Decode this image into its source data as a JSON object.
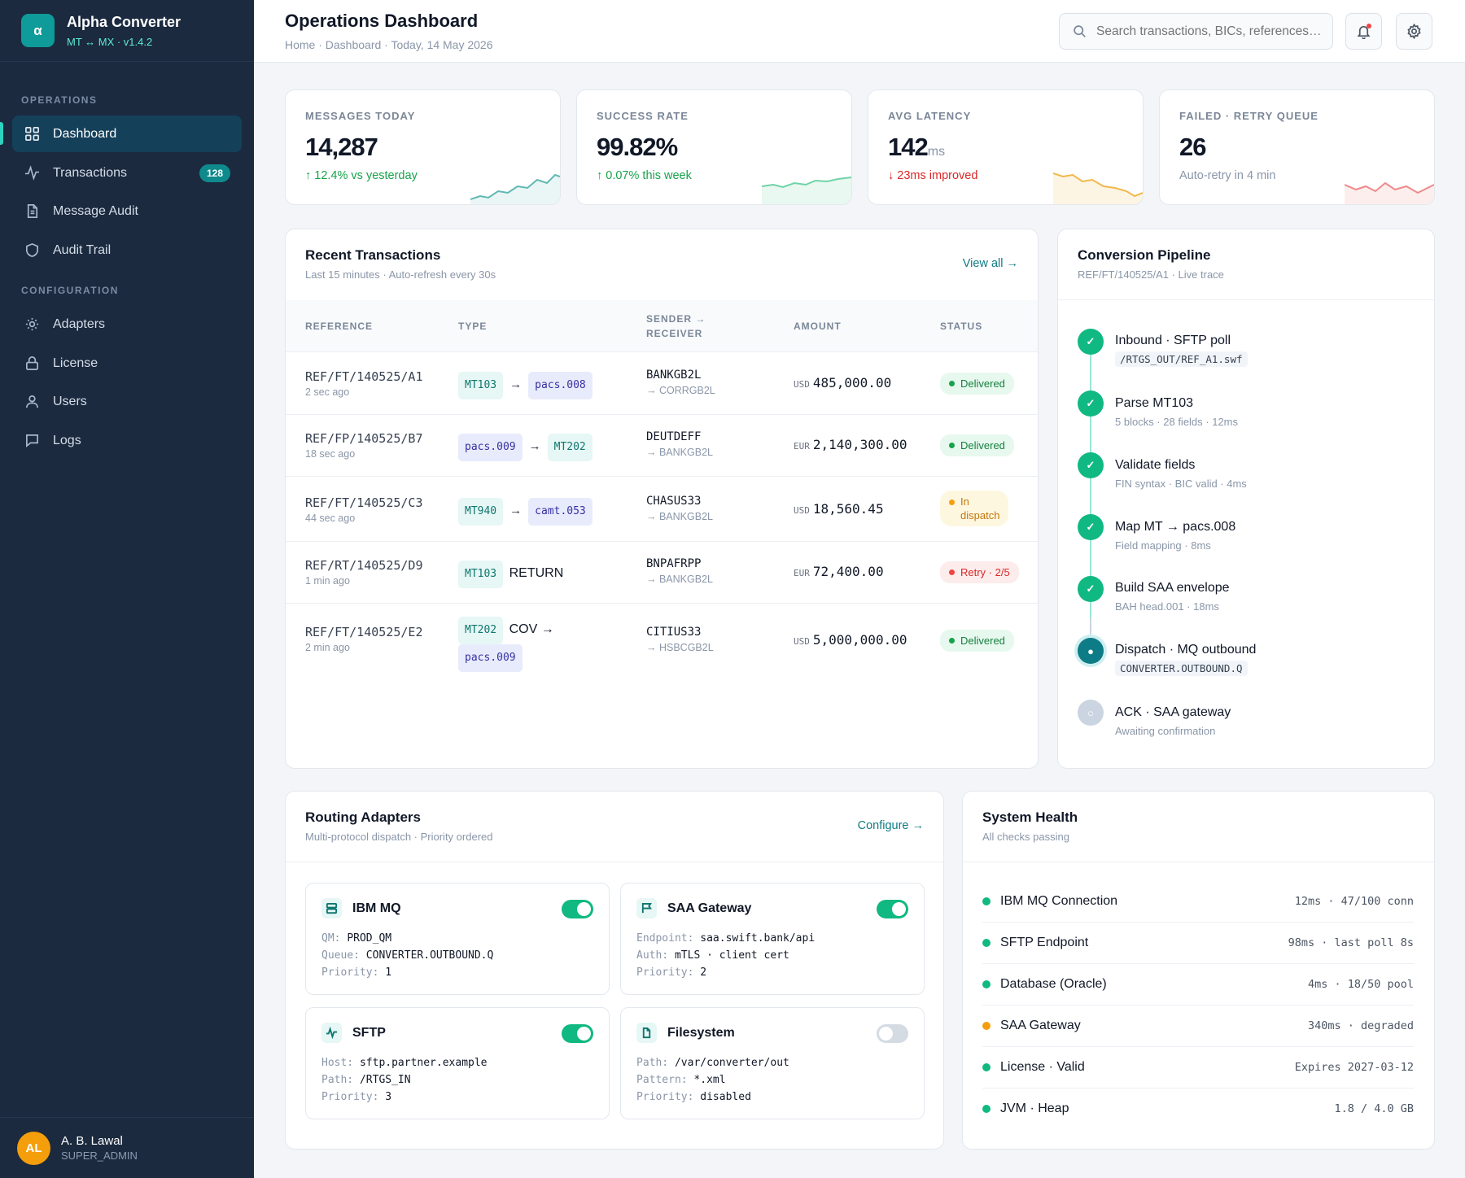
{
  "app": {
    "name": "Alpha Converter",
    "logo_glyph": "α",
    "subtitle": "MT ↔ MX · v1.4.2"
  },
  "sidebar": {
    "sections": [
      {
        "label": "OPERATIONS"
      },
      {
        "label": "CONFIGURATION"
      }
    ],
    "items": [
      {
        "label": "Dashboard",
        "icon": "grid-icon",
        "active": true
      },
      {
        "label": "Transactions",
        "icon": "activity-icon",
        "badge": "128"
      },
      {
        "label": "Message Audit",
        "icon": "file-icon"
      },
      {
        "label": "Audit Trail",
        "icon": "shield-icon"
      },
      {
        "label": "Adapters",
        "icon": "sun-icon"
      },
      {
        "label": "License",
        "icon": "lock-icon"
      },
      {
        "label": "Users",
        "icon": "user-icon"
      },
      {
        "label": "Logs",
        "icon": "chat-icon"
      }
    ],
    "user": {
      "initials": "AL",
      "name": "A. B. Lawal",
      "role": "SUPER_ADMIN"
    }
  },
  "header": {
    "title": "Operations Dashboard",
    "breadcrumb": "Home · Dashboard · Today, 14 May 2026",
    "search_placeholder": "Search transactions, BICs, references…"
  },
  "kpis": [
    {
      "label": "MESSAGES TODAY",
      "value": "14,287",
      "unit": "",
      "delta": "↑ 12.4% vs yesterday",
      "delta_color": "#16a34a",
      "spark_color": "#5fb8b3"
    },
    {
      "label": "SUCCESS RATE",
      "value": "99.82%",
      "unit": "",
      "delta": "↑ 0.07% this week",
      "delta_color": "#16a34a",
      "spark_color": "#6ed3a8"
    },
    {
      "label": "AVG LATENCY",
      "value": "142",
      "unit": "ms",
      "delta": "↓ 23ms improved",
      "delta_color": "#dc2626",
      "spark_color": "#f2b84b"
    },
    {
      "label": "FAILED · RETRY QUEUE",
      "value": "26",
      "unit": "",
      "delta": "Auto-retry in 4 min",
      "delta_color": "#8a96a8",
      "spark_color": "#ef8a8a"
    }
  ],
  "transactions": {
    "title": "Recent Transactions",
    "subtitle": "Last 15 minutes · Auto-refresh every 30s",
    "link": "View all →",
    "columns": [
      "REFERENCE",
      "TYPE",
      "SENDER →",
      "RECEIVER",
      "AMOUNT",
      "STATUS"
    ],
    "rows": [
      {
        "ref": "REF/FT/140525/A1",
        "time": "2 sec ago",
        "from": "MT103",
        "to": "pacs.008",
        "sender": "BANKGB2L",
        "receiver": "→ CORRGB2L",
        "ccy": "USD",
        "amount": "485,000.00",
        "status": "Delivered"
      },
      {
        "ref": "REF/FP/140525/B7",
        "time": "18 sec ago",
        "from": "pacs.009",
        "to": "MT202",
        "sender": "DEUTDEFF",
        "receiver": "→ BANKGB2L",
        "ccy": "EUR",
        "amount": "2,140,300.00",
        "status": "Delivered"
      },
      {
        "ref": "REF/FT/140525/C3",
        "time": "44 sec ago",
        "from": "MT940",
        "to": "camt.053",
        "sender": "CHASUS33",
        "receiver": "→ BANKGB2L",
        "ccy": "USD",
        "amount": "18,560.45",
        "status_l1": "In",
        "status_l2": "dispatch"
      },
      {
        "ref": "REF/RT/140525/D9",
        "time": "1 min ago",
        "from": "MT103",
        "extra": "RETURN",
        "sender": "BNPAFRPP",
        "receiver": "→ BANKGB2L",
        "ccy": "EUR",
        "amount": "72,400.00",
        "status": "Retry · 2/5"
      },
      {
        "ref": "REF/FT/140525/E2",
        "time": "2 min ago",
        "from": "MT202",
        "extra": "COV →",
        "to": "pacs.009",
        "sender": "CITIUS33",
        "receiver": "→ HSBCGB2L",
        "ccy": "USD",
        "amount": "5,000,000.00",
        "status": "Delivered"
      }
    ]
  },
  "pipeline": {
    "title": "Conversion Pipeline",
    "subtitle": "REF/FT/140525/A1 · Live trace",
    "steps": [
      {
        "title": "Inbound · SFTP poll",
        "code": "/RTGS_OUT/REF_A1.swf",
        "state": "done",
        "glyph": "✓"
      },
      {
        "title": "Parse MT103",
        "sub": "5 blocks · 28 fields · 12ms",
        "state": "done",
        "glyph": "✓"
      },
      {
        "title": "Validate fields",
        "sub": "FIN syntax · BIC valid · 4ms",
        "state": "done",
        "glyph": "✓"
      },
      {
        "title": "Map MT → pacs.008",
        "sub": "Field mapping · 8ms",
        "state": "done",
        "glyph": "✓"
      },
      {
        "title": "Build SAA envelope",
        "sub": "BAH head.001 · 18ms",
        "state": "done",
        "glyph": "✓"
      },
      {
        "title": "Dispatch · MQ outbound",
        "code": "CONVERTER.OUTBOUND.Q",
        "state": "active",
        "glyph": "●"
      },
      {
        "title": "ACK · SAA gateway",
        "sub": "Awaiting confirmation",
        "state": "pending",
        "glyph": "○"
      }
    ]
  },
  "adapters": {
    "title": "Routing Adapters",
    "subtitle": "Multi-protocol dispatch · Priority ordered",
    "link": "Configure →",
    "items": [
      {
        "name": "IBM MQ",
        "icon": "server-icon",
        "enabled": true,
        "k1": "QM:",
        "v1": "PROD_QM",
        "k2": "Queue:",
        "v2": "CONVERTER.OUTBOUND.Q",
        "k3": "Priority:",
        "v3": "1"
      },
      {
        "name": "SAA Gateway",
        "icon": "flag-icon",
        "enabled": true,
        "k1": "Endpoint:",
        "v1": "saa.swift.bank/api",
        "k2": "Auth:",
        "v2": "mTLS · client cert",
        "k3": "Priority:",
        "v3": "2"
      },
      {
        "name": "SFTP",
        "icon": "activity-icon",
        "enabled": true,
        "k1": "Host:",
        "v1": "sftp.partner.example",
        "k2": "Path:",
        "v2": "/RTGS_IN",
        "k3": "Priority:",
        "v3": "3"
      },
      {
        "name": "Filesystem",
        "icon": "file-icon",
        "enabled": false,
        "k1": "Path:",
        "v1": "/var/converter/out",
        "k2": "Pattern:",
        "v2": "*.xml",
        "k3": "Priority:",
        "v3": "disabled"
      }
    ]
  },
  "health": {
    "title": "System Health",
    "subtitle": "All checks passing",
    "items": [
      {
        "name": "IBM MQ Connection",
        "value": "12ms · 47/100 conn",
        "color": "#10b981"
      },
      {
        "name": "SFTP Endpoint",
        "value": "98ms · last poll 8s",
        "color": "#10b981"
      },
      {
        "name": "Database (Oracle)",
        "value": "4ms · 18/50 pool",
        "color": "#10b981"
      },
      {
        "name": "SAA Gateway",
        "value": "340ms · degraded",
        "color": "#f59e0b"
      },
      {
        "name": "License · Valid",
        "value": "Expires 2027-03-12",
        "color": "#10b981"
      },
      {
        "name": "JVM · Heap",
        "value": "1.8 / 4.0 GB",
        "color": "#10b981"
      }
    ]
  }
}
